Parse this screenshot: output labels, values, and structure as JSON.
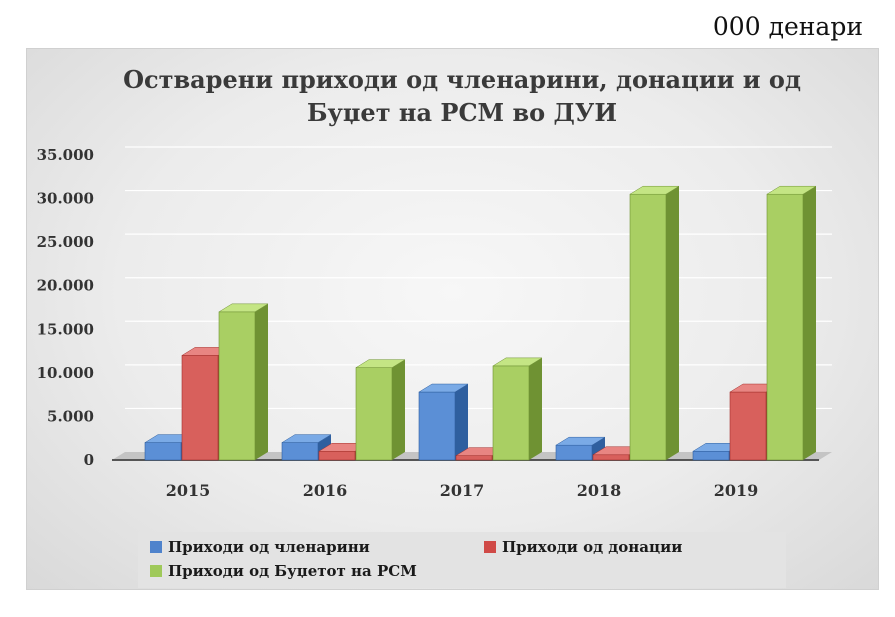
{
  "unit_label": "000 денари",
  "chart_data": {
    "type": "bar",
    "title_lines": [
      "Остварени приходи од членарини, донации и од",
      "Буџет на РСМ во ДУИ"
    ],
    "categories": [
      "2015",
      "2016",
      "2017",
      "2018",
      "2019"
    ],
    "series": [
      {
        "name": "Приходи од членарини",
        "values": [
          2000,
          2000,
          7800,
          1700,
          1000
        ]
      },
      {
        "name": "Приходи од донации",
        "values": [
          12000,
          1000,
          500,
          600,
          7800
        ]
      },
      {
        "name": "Приходи од Буџетот на РСМ",
        "values": [
          17000,
          10600,
          10800,
          30500,
          30500
        ]
      }
    ],
    "yticks": [
      "0",
      "5.000",
      "10.000",
      "15.000",
      "20.000",
      "25.000",
      "30.000",
      "35.000"
    ],
    "ylim": [
      0,
      35000
    ],
    "grid": true,
    "legend_position": "bottom"
  },
  "colors": {
    "series": [
      "#5b8fd6",
      "#d8605c",
      "#a9cf63"
    ],
    "series_dark": [
      "#2f5f9f",
      "#a4302d",
      "#6f9233"
    ],
    "series_light": [
      "#7aaae6",
      "#e88582",
      "#c4e584"
    ]
  }
}
